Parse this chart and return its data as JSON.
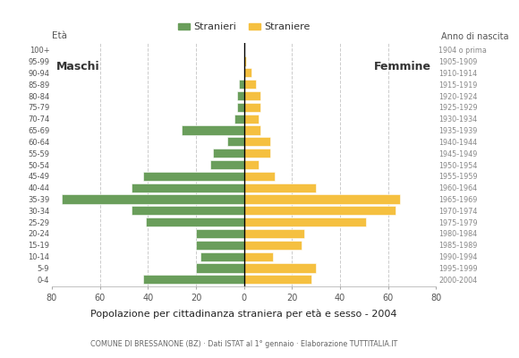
{
  "age_groups_bottom_to_top": [
    "0-4",
    "5-9",
    "10-14",
    "15-19",
    "20-24",
    "25-29",
    "30-34",
    "35-39",
    "40-44",
    "45-49",
    "50-54",
    "55-59",
    "60-64",
    "65-69",
    "70-74",
    "75-79",
    "80-84",
    "85-89",
    "90-94",
    "95-99",
    "100+"
  ],
  "birth_years_bottom_to_top": [
    "2000-2004",
    "1995-1999",
    "1990-1994",
    "1985-1989",
    "1980-1984",
    "1975-1979",
    "1970-1974",
    "1965-1969",
    "1960-1964",
    "1955-1959",
    "1950-1954",
    "1945-1949",
    "1940-1944",
    "1935-1939",
    "1930-1934",
    "1925-1929",
    "1920-1924",
    "1915-1919",
    "1910-1914",
    "1905-1909",
    "1904 o prima"
  ],
  "males_bottom_to_top": [
    42,
    20,
    18,
    20,
    20,
    41,
    47,
    76,
    47,
    42,
    14,
    13,
    7,
    26,
    4,
    3,
    3,
    2,
    0,
    0,
    0
  ],
  "females_bottom_to_top": [
    28,
    30,
    12,
    24,
    25,
    51,
    63,
    65,
    30,
    13,
    6,
    11,
    11,
    7,
    6,
    7,
    7,
    5,
    3,
    1,
    0
  ],
  "male_color": "#6a9e5b",
  "female_color": "#f5c040",
  "title": "Popolazione per cittadinanza straniera per età e sesso - 2004",
  "subtitle": "COMUNE DI BRESSANONE (BZ) · Dati ISTAT al 1° gennaio · Elaborazione TUTTITALIA.IT",
  "legend_male": "Stranieri",
  "legend_female": "Straniere",
  "label_maschi": "Maschi",
  "label_femmine": "Femmine",
  "ylabel_left": "Età",
  "ylabel_right": "Anno di nascita",
  "xlim": 80,
  "background_color": "#ffffff",
  "grid_color": "#cccccc",
  "grid_linestyle": "--",
  "bar_height": 0.8
}
